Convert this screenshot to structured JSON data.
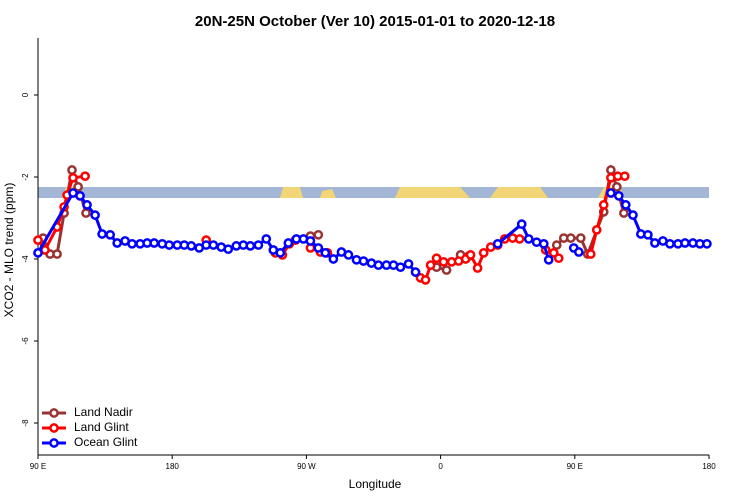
{
  "chart_data": {
    "type": "line",
    "title": "20N-25N October (Ver 10)   2015-01-01 to 2020-12-18",
    "x_label": "Longitude",
    "y_label": "XCO2 - MLO trend (ppm)",
    "xlim": [
      90,
      540
    ],
    "ylim": [
      -8.78,
      1.39
    ],
    "xticks": [
      {
        "value": 90,
        "label": "90 E"
      },
      180,
      {
        "value": 270,
        "label": "90 W"
      },
      {
        "value": 360,
        "label": "0"
      },
      {
        "value": 450,
        "label": "90 E"
      },
      {
        "value": 540,
        "label": "180"
      }
    ],
    "yticks": [
      0,
      -2,
      -4,
      -6,
      -8
    ],
    "legend": "bottom-left",
    "series": [
      {
        "name": "Land Nadir",
        "color": "#993333",
        "x": [
          93.4,
          98.1,
          102.8,
          107.5,
          112.8,
          116.9,
          122.2,
          null,
          272.7,
          278,
          null,
          357.3,
          364,
          null,
          373.4,
          378.8,
          null,
          437.9,
          442.6,
          447.3,
          454,
          458.7,
          469.4,
          474.2,
          478.2,
          482.9
        ],
        "values": [
          -3.49,
          -3.88,
          -3.88,
          -2.88,
          -1.83,
          -2.24,
          -2.88,
          null,
          -3.44,
          -3.41,
          null,
          -4.2,
          -4.27,
          null,
          -3.9,
          -3.93,
          null,
          -3.66,
          -3.49,
          -3.49,
          -3.49,
          -3.88,
          -2.85,
          -1.83,
          -2.24,
          -2.88
        ]
      },
      {
        "name": "Land Glint",
        "color": "#ff0000",
        "x": [
          90,
          94.7,
          102.8,
          107.5,
          109.5,
          113.5,
          121.6,
          null,
          202.8,
          null,
          249.2,
          253.9,
          258.6,
          262.6,
          null,
          272.7,
          279.4,
          284.1,
          null,
          346.5,
          349.9,
          353.3,
          357.3,
          362,
          367.4,
          372.1,
          376.8,
          380.1,
          384.8,
          388.9,
          393.6,
          398.3,
          403,
          408.3,
          413,
          null,
          430.5,
          435.9,
          439.2,
          null,
          460.7,
          464.7,
          469.4,
          474.2,
          478.8,
          483.5
        ],
        "values": [
          -3.54,
          -3.78,
          -3.22,
          -2.73,
          -2.44,
          -2.02,
          -1.98,
          null,
          -3.54,
          null,
          -3.85,
          -3.9,
          -3.63,
          -3.54,
          null,
          -3.73,
          -3.83,
          -3.85,
          null,
          -4.46,
          -4.51,
          -4.15,
          -3.98,
          -4.07,
          -4.07,
          -4.05,
          -4.0,
          -3.9,
          -4.22,
          -3.85,
          -3.71,
          -3.66,
          -3.51,
          -3.49,
          -3.51,
          null,
          -3.78,
          -3.85,
          -3.98,
          null,
          -3.88,
          -3.29,
          -2.68,
          -2.02,
          -1.98,
          -1.98
        ]
      },
      {
        "name": "Ocean Glint",
        "color": "#0000ff",
        "x": [
          90,
          113.5,
          118.2,
          122.9,
          128.3,
          133,
          138.4,
          143.1,
          148.4,
          153.1,
          158.5,
          163.2,
          167.9,
          173.3,
          178,
          183.4,
          188.1,
          192.8,
          198.1,
          202.8,
          207.6,
          212.9,
          217.6,
          223,
          227.7,
          232.4,
          237.8,
          243.1,
          247.8,
          252.5,
          257.9,
          263.3,
          268,
          272.7,
          278,
          282.7,
          288.1,
          293.5,
          298.2,
          303.6,
          308.3,
          313.6,
          318.3,
          323.7,
          328.4,
          333.1,
          338.5,
          343.2,
          null,
          398.3,
          414.4,
          419.1,
          424.4,
          429.2,
          432.5,
          null,
          449.3,
          452.7,
          null,
          474.2,
          479.5,
          484.2,
          489,
          494.3,
          499,
          503.7,
          509.1,
          513.8,
          519.2,
          523.9,
          529.2,
          533.9,
          538.6
        ],
        "values": [
          -3.85,
          -2.39,
          -2.46,
          -2.68,
          -2.93,
          -3.39,
          -3.41,
          -3.61,
          -3.56,
          -3.63,
          -3.63,
          -3.61,
          -3.61,
          -3.63,
          -3.66,
          -3.66,
          -3.66,
          -3.68,
          -3.73,
          -3.66,
          -3.66,
          -3.71,
          -3.76,
          -3.68,
          -3.66,
          -3.68,
          -3.66,
          -3.51,
          -3.78,
          -3.85,
          -3.61,
          -3.51,
          -3.51,
          -3.56,
          -3.73,
          -3.85,
          -4.0,
          -3.83,
          -3.9,
          -4.02,
          -4.05,
          -4.1,
          -4.15,
          -4.15,
          -4.15,
          -4.2,
          -4.12,
          -4.32,
          null,
          -3.63,
          -3.15,
          -3.51,
          -3.59,
          -3.63,
          -4.02,
          null,
          -3.73,
          -3.83,
          null,
          -2.39,
          -2.46,
          -2.68,
          -2.93,
          -3.39,
          -3.41,
          -3.61,
          -3.56,
          -3.63,
          -3.63,
          -3.61,
          -3.61,
          -3.63,
          -3.63
        ]
      }
    ]
  }
}
